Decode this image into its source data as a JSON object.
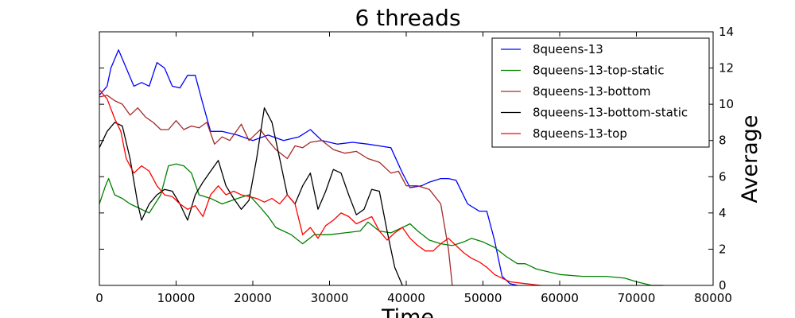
{
  "chart_data": {
    "type": "line",
    "title": "6 threads",
    "xlabel": "Time",
    "ylabel": "Average",
    "xlim": [
      0,
      80000
    ],
    "ylim": [
      0,
      14
    ],
    "xticks": [
      "0",
      "10000",
      "20000",
      "30000",
      "40000",
      "50000",
      "60000",
      "70000",
      "80000"
    ],
    "yticks": [
      "0",
      "2",
      "4",
      "6",
      "8",
      "10",
      "12",
      "14"
    ],
    "y_axis_side": "right",
    "grid": false,
    "legend_position": "top-right",
    "series": [
      {
        "name": "8queens-13",
        "color": "#0000ff",
        "x": [
          0,
          1000,
          1500,
          2500,
          3500,
          4500,
          5500,
          6500,
          7500,
          8500,
          9500,
          10500,
          11500,
          12500,
          13500,
          14500,
          16000,
          18000,
          20000,
          22000,
          24000,
          26000,
          27500,
          29000,
          31000,
          33000,
          35000,
          36500,
          38000,
          39500,
          40500,
          42000,
          43000,
          44500,
          45500,
          46500,
          48000,
          49500,
          50500,
          51500,
          52500,
          53500,
          54500
        ],
        "y": [
          10.5,
          11.0,
          12.0,
          13.0,
          12.0,
          11.0,
          11.2,
          11.0,
          12.3,
          12.0,
          11.0,
          10.9,
          11.6,
          11.6,
          10.0,
          8.5,
          8.5,
          8.3,
          8.0,
          8.3,
          8.0,
          8.2,
          8.6,
          8.0,
          7.8,
          7.9,
          7.8,
          7.7,
          7.6,
          6.2,
          5.4,
          5.5,
          5.7,
          5.9,
          5.9,
          5.8,
          4.5,
          4.1,
          4.1,
          2.5,
          0.5,
          0.1,
          0.0
        ]
      },
      {
        "name": "8queens-13-top-static",
        "color": "#008000",
        "x": [
          0,
          800,
          1200,
          2000,
          3000,
          4000,
          5000,
          6500,
          8000,
          9000,
          10000,
          11000,
          12000,
          13000,
          14500,
          16000,
          18000,
          19500,
          21000,
          22000,
          23000,
          24000,
          25000,
          26500,
          28000,
          30000,
          32000,
          34000,
          35000,
          36500,
          38000,
          39500,
          40500,
          41500,
          43000,
          44500,
          46000,
          47500,
          48500,
          50000,
          51500,
          53000,
          54500,
          55500,
          57000,
          60000,
          63000,
          66000,
          68500,
          70000,
          72000,
          73500
        ],
        "y": [
          4.5,
          5.5,
          5.9,
          5.0,
          4.8,
          4.5,
          4.3,
          4.0,
          5.0,
          6.6,
          6.7,
          6.6,
          6.2,
          5.0,
          4.8,
          4.5,
          4.8,
          5.0,
          4.3,
          3.8,
          3.2,
          3.0,
          2.8,
          2.3,
          2.8,
          2.8,
          2.9,
          3.0,
          3.5,
          3.0,
          2.9,
          3.2,
          3.4,
          3.0,
          2.5,
          2.3,
          2.2,
          2.4,
          2.6,
          2.4,
          2.1,
          1.6,
          1.2,
          1.2,
          0.9,
          0.6,
          0.5,
          0.5,
          0.4,
          0.2,
          0.0,
          0.0
        ]
      },
      {
        "name": "8queens-13-bottom",
        "color": "#a52a2a",
        "x": [
          0,
          1000,
          2000,
          3000,
          4000,
          5000,
          6000,
          7000,
          8000,
          9000,
          10000,
          11000,
          12000,
          13000,
          14000,
          15000,
          16000,
          17000,
          18500,
          19500,
          21000,
          22000,
          23000,
          24500,
          25500,
          26500,
          27500,
          29000,
          30500,
          32000,
          33500,
          35000,
          36500,
          38000,
          39000,
          40000,
          41500,
          43000,
          44500,
          45500,
          46000
        ],
        "y": [
          10.4,
          10.5,
          10.2,
          10.0,
          9.4,
          9.8,
          9.3,
          9.0,
          8.6,
          8.6,
          9.1,
          8.6,
          8.8,
          8.7,
          9.0,
          7.8,
          8.2,
          8.0,
          8.9,
          8.0,
          8.6,
          8.0,
          7.5,
          7.0,
          7.7,
          7.6,
          7.9,
          8.0,
          7.5,
          7.3,
          7.4,
          7.0,
          6.8,
          6.2,
          6.3,
          5.5,
          5.5,
          5.3,
          4.5,
          2.0,
          0.0
        ]
      },
      {
        "name": "8queens-13-bottom-static",
        "color": "#000000",
        "x": [
          0,
          1000,
          2000,
          3000,
          4000,
          5000,
          5500,
          6500,
          7500,
          8500,
          9500,
          10500,
          11500,
          12500,
          13500,
          14500,
          15500,
          16500,
          17500,
          18500,
          19500,
          20500,
          21500,
          22500,
          23500,
          24500,
          25500,
          26500,
          27500,
          28500,
          29500,
          30500,
          31500,
          32500,
          33500,
          34500,
          35500,
          36500,
          37500,
          38500,
          39500
        ],
        "y": [
          7.6,
          8.5,
          9.0,
          8.8,
          7.0,
          4.5,
          3.6,
          4.5,
          5.0,
          5.3,
          5.2,
          4.5,
          3.6,
          5.0,
          5.7,
          6.3,
          6.9,
          5.5,
          4.8,
          4.2,
          4.7,
          7.0,
          9.8,
          9.0,
          7.0,
          5.0,
          4.5,
          5.5,
          6.2,
          4.2,
          5.2,
          6.4,
          6.2,
          5.0,
          3.9,
          4.2,
          5.3,
          5.2,
          3.0,
          1.0,
          0.0
        ]
      },
      {
        "name": "8queens-13-top",
        "color": "#ff0000",
        "x": [
          0,
          1000,
          2000,
          2800,
          3500,
          4500,
          5500,
          6500,
          7500,
          8500,
          9500,
          10500,
          11500,
          12500,
          13500,
          14500,
          15500,
          16500,
          17500,
          18500,
          19500,
          20500,
          21500,
          22500,
          23500,
          24500,
          25500,
          26500,
          27500,
          28500,
          29500,
          30500,
          31500,
          32500,
          33500,
          34500,
          35500,
          36500,
          37500,
          38500,
          39500,
          40500,
          41500,
          42500,
          43500,
          44500,
          45500,
          46500,
          47500,
          48500,
          49500,
          50500,
          51500,
          52500,
          53500,
          54500,
          55500,
          56500,
          57500
        ],
        "y": [
          10.8,
          10.3,
          9.2,
          8.5,
          7.0,
          6.2,
          6.6,
          6.3,
          5.5,
          5.0,
          4.9,
          4.5,
          4.2,
          4.4,
          3.8,
          5.0,
          5.5,
          5.0,
          5.2,
          5.0,
          4.9,
          4.8,
          4.6,
          4.8,
          4.5,
          5.0,
          4.5,
          2.8,
          3.2,
          2.6,
          3.3,
          3.6,
          4.0,
          3.8,
          3.4,
          3.6,
          3.8,
          3.0,
          2.5,
          2.9,
          3.2,
          2.6,
          2.2,
          1.9,
          1.9,
          2.3,
          2.6,
          2.2,
          1.8,
          1.5,
          1.3,
          1.0,
          0.6,
          0.4,
          0.2,
          0.15,
          0.1,
          0.05,
          0.0
        ]
      }
    ]
  }
}
